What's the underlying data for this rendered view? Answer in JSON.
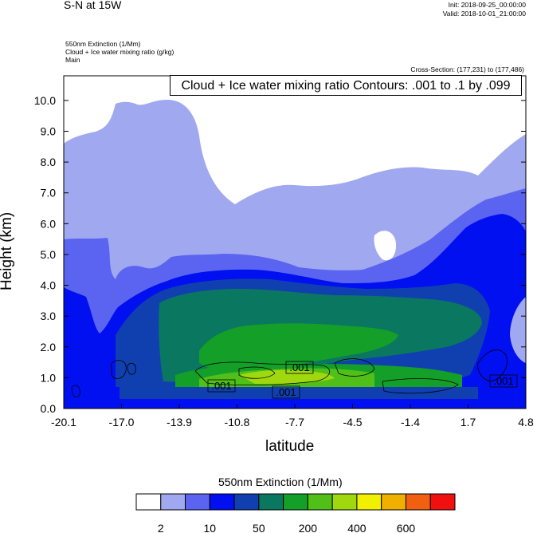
{
  "header": {
    "title": "S-N at 15W",
    "init": "Init: 2018-09-25_00:00:00",
    "valid": "Valid: 2018-10-01_21:00:00",
    "field1": "550nm Extinction   (1/Mm)",
    "field2": "Cloud + Ice water mixing ratio   (g/kg)",
    "field3": "Main",
    "cross_section": "Cross-Section: (177,231) to (177,486)",
    "contour_info": "Cloud + Ice water mixing ratio Contours: .001 to .1 by .099"
  },
  "chart_data": {
    "type": "heatmap",
    "xlabel": "latitude",
    "ylabel": "Height (km)",
    "x_ticks": [
      "-20.1",
      "-17.0",
      "-13.9",
      "-10.8",
      "-7.7",
      "-4.5",
      "-1.4",
      "1.7",
      "4.8"
    ],
    "xlim": [
      -20.1,
      4.8
    ],
    "y_ticks": [
      "0.0",
      "1.0",
      "2.0",
      "3.0",
      "4.0",
      "5.0",
      "6.0",
      "7.0",
      "8.0",
      "9.0",
      "10.0"
    ],
    "ylim": [
      0,
      10.8
    ],
    "colorbar": {
      "title": "550nm Extinction  (1/Mm)",
      "labels": [
        "2",
        "10",
        "50",
        "200",
        "400",
        "600"
      ],
      "colors": [
        "#ffffff",
        "#a0a8f0",
        "#5a64f0",
        "#0010f0",
        "#1040b0",
        "#0a7860",
        "#14a028",
        "#50c018",
        "#a0d810",
        "#f0f000",
        "#f0b000",
        "#f06010",
        "#f01010"
      ]
    },
    "contour_labels": [
      ".001",
      ".001",
      ".001",
      ".001"
    ]
  }
}
